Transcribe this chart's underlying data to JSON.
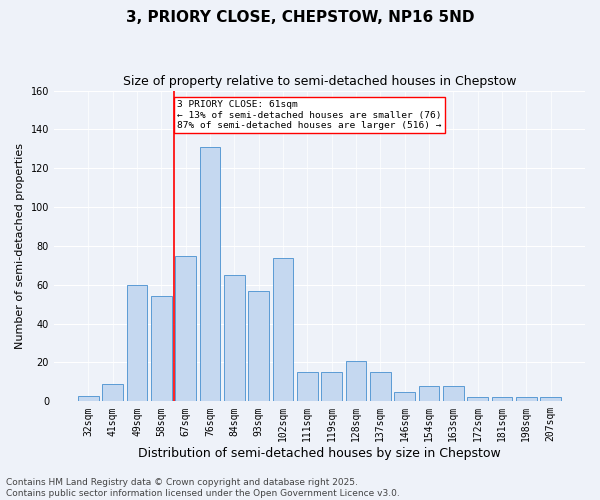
{
  "title": "3, PRIORY CLOSE, CHEPSTOW, NP16 5ND",
  "subtitle": "Size of property relative to semi-detached houses in Chepstow",
  "xlabel": "Distribution of semi-detached houses by size in Chepstow",
  "ylabel": "Number of semi-detached properties",
  "categories": [
    "32sqm",
    "41sqm",
    "49sqm",
    "58sqm",
    "67sqm",
    "76sqm",
    "84sqm",
    "93sqm",
    "102sqm",
    "111sqm",
    "119sqm",
    "128sqm",
    "137sqm",
    "146sqm",
    "154sqm",
    "163sqm",
    "172sqm",
    "181sqm",
    "198sqm",
    "207sqm"
  ],
  "values": [
    3,
    9,
    60,
    54,
    75,
    131,
    65,
    57,
    74,
    15,
    15,
    21,
    15,
    5,
    8,
    8,
    2,
    2,
    2,
    2
  ],
  "bar_color": "#c5d8f0",
  "bar_edge_color": "#5b9bd5",
  "highlight_index": 3,
  "highlight_color": "#ff0000",
  "property_label": "3 PRIORY CLOSE: 61sqm",
  "pct_smaller": 13,
  "count_smaller": 76,
  "pct_larger": 87,
  "count_larger": 516,
  "background_color": "#eef2f9",
  "ylim": [
    0,
    160
  ],
  "yticks": [
    0,
    20,
    40,
    60,
    80,
    100,
    120,
    140,
    160
  ],
  "footer_text": "Contains HM Land Registry data © Crown copyright and database right 2025.\nContains public sector information licensed under the Open Government Licence v3.0.",
  "title_fontsize": 11,
  "subtitle_fontsize": 9,
  "xlabel_fontsize": 9,
  "ylabel_fontsize": 8,
  "tick_fontsize": 7,
  "footer_fontsize": 6.5
}
